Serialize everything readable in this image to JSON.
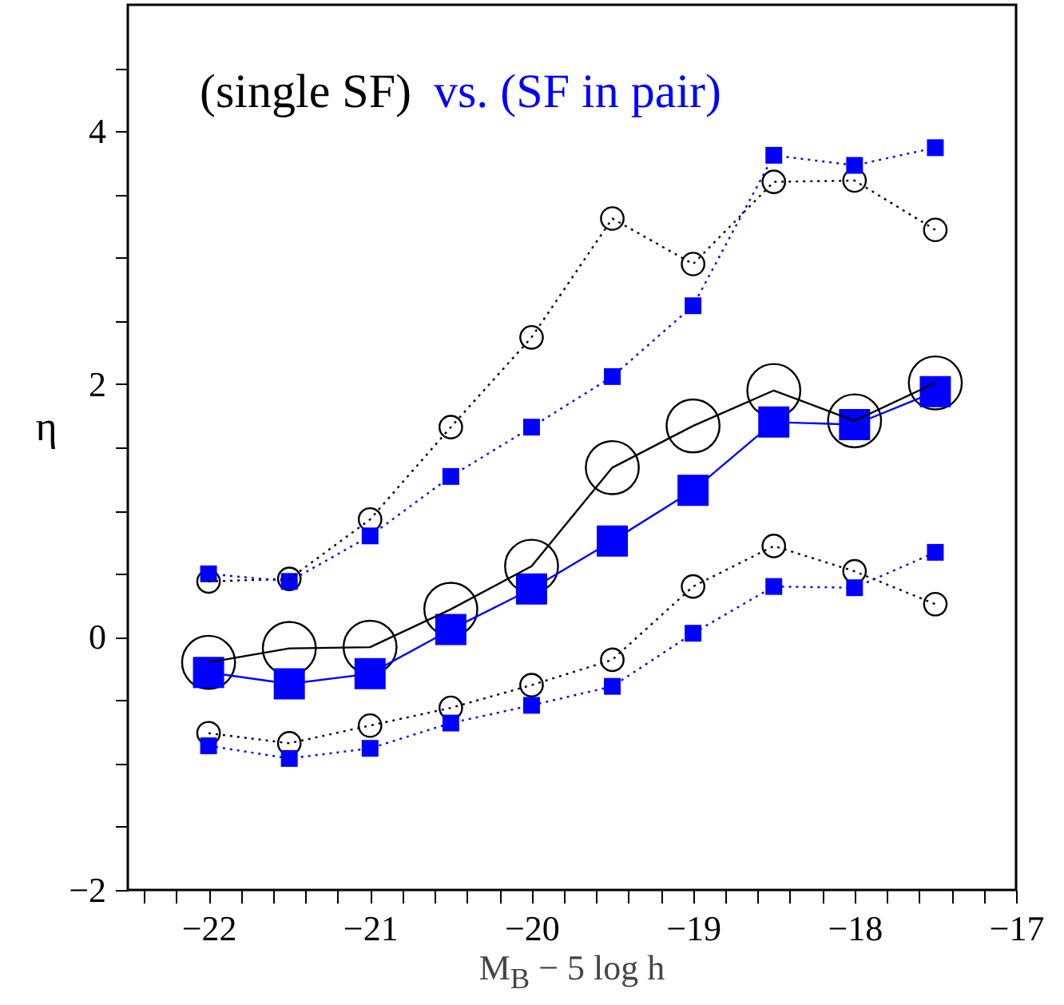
{
  "chart_data": {
    "type": "line",
    "xlabel": "M$_{B}$ − 5 log h",
    "ylabel": "η",
    "x": [
      -22,
      -21.5,
      -21,
      -20.5,
      -20,
      -19.5,
      -19,
      -18.5,
      -18,
      -17.5
    ],
    "series": [
      {
        "name": "(single SF)",
        "color": "#000000",
        "marker": "circle",
        "line_style": "solid",
        "values": [
          -0.2,
          -0.09,
          -0.08,
          0.22,
          0.56,
          1.34,
          1.67,
          1.95,
          1.71,
          2.01
        ]
      },
      {
        "name": "vs. (SF in pair)",
        "color": "#0000ff",
        "marker": "square",
        "line_style": "solid",
        "values": [
          -0.28,
          -0.37,
          -0.29,
          0.06,
          0.38,
          0.76,
          1.16,
          1.7,
          1.68,
          1.94
        ]
      },
      {
        "color": "#000000",
        "marker": "circle",
        "line_style": "dotted",
        "values": [
          0.44,
          0.46,
          0.93,
          1.66,
          2.37,
          3.31,
          2.95,
          3.6,
          3.61,
          3.22
        ]
      },
      {
        "color": "#0000ff",
        "marker": "square",
        "line_style": "dotted",
        "values": [
          0.5,
          0.44,
          0.8,
          1.27,
          1.66,
          2.06,
          2.62,
          3.81,
          3.73,
          3.87
        ]
      },
      {
        "color": "#000000",
        "marker": "circle",
        "line_style": "dotted",
        "values": [
          -0.76,
          -0.84,
          -0.7,
          -0.56,
          -0.38,
          -0.18,
          0.4,
          0.72,
          0.52,
          0.26
        ]
      },
      {
        "color": "#0000ff",
        "marker": "square",
        "line_style": "dotted",
        "values": [
          -0.86,
          -0.96,
          -0.88,
          -0.68,
          -0.54,
          -0.39,
          0.03,
          0.4,
          0.39,
          0.67
        ]
      }
    ],
    "xlim": [
      -22.5,
      -17
    ],
    "ylim": [
      -2,
      5
    ],
    "xticks": [
      {
        "value": -22.4,
        "label": null
      },
      {
        "value": -22.2,
        "label": null
      },
      {
        "value": -22,
        "label": "−22"
      },
      {
        "value": -21.8,
        "label": null
      },
      {
        "value": -21.6,
        "label": null
      },
      {
        "value": -21.4,
        "label": null
      },
      {
        "value": -21.2,
        "label": null
      },
      {
        "value": -21,
        "label": "−21"
      },
      {
        "value": -20.8,
        "label": null
      },
      {
        "value": -20.6,
        "label": null
      },
      {
        "value": -20.4,
        "label": null
      },
      {
        "value": -20.2,
        "label": null
      },
      {
        "value": -20,
        "label": "−20"
      },
      {
        "value": -19.8,
        "label": null
      },
      {
        "value": -19.6,
        "label": null
      },
      {
        "value": -19.4,
        "label": null
      },
      {
        "value": -19.2,
        "label": null
      },
      {
        "value": -19,
        "label": "−19"
      },
      {
        "value": -18.8,
        "label": null
      },
      {
        "value": -18.6,
        "label": null
      },
      {
        "value": -18.4,
        "label": null
      },
      {
        "value": -18.2,
        "label": null
      },
      {
        "value": -18,
        "label": "−18"
      },
      {
        "value": -17.8,
        "label": null
      },
      {
        "value": -17.6,
        "label": null
      },
      {
        "value": -17.4,
        "label": null
      },
      {
        "value": -17.2,
        "label": null
      },
      {
        "value": -17,
        "label": "−17"
      }
    ],
    "yticks": [
      {
        "value": -2,
        "label": "−2"
      },
      {
        "value": -1.5,
        "label": null
      },
      {
        "value": -1,
        "label": null
      },
      {
        "value": -0.5,
        "label": null
      },
      0,
      {
        "value": 0.5,
        "label": null
      },
      {
        "value": 1,
        "label": null
      },
      {
        "value": 1.5,
        "label": null
      },
      2,
      {
        "value": 2.5,
        "label": null
      },
      {
        "value": 3,
        "label": null
      },
      {
        "value": 3.5,
        "label": null
      },
      4,
      {
        "value": 4.5,
        "label": null
      }
    ],
    "grid": false
  }
}
